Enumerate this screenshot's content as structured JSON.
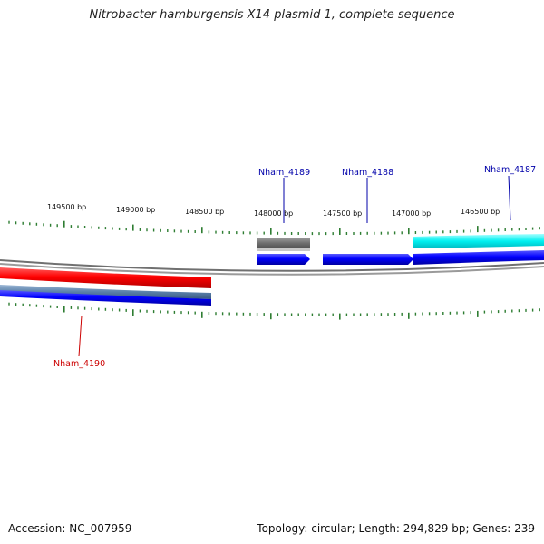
{
  "title": "Nitrobacter hamburgensis X14 plasmid 1, complete sequence",
  "footer": {
    "accession": "Accession: NC_007959",
    "summary": "Topology: circular; Length: 294,829 bp; Genes: 239"
  },
  "ruler": {
    "labels": [
      "149500 bp",
      "149000 bp",
      "148500 bp",
      "148000 bp",
      "147500 bp",
      "147000 bp",
      "146500 bp"
    ]
  },
  "genes": [
    {
      "name": "Nham_4189",
      "color": "#0000aa"
    },
    {
      "name": "Nham_4188",
      "color": "#0000aa"
    },
    {
      "name": "Nham_4187",
      "color": "#0000aa"
    },
    {
      "name": "Nham_4190",
      "color": "#cc0000"
    }
  ],
  "colors": {
    "backbone": "#888888",
    "forward_cds": "#0000ee",
    "forward_product": "#00e5e5",
    "reverse_cds": "#ee0000",
    "reverse_product": "#5a7fa8",
    "gray_feature": "#707070",
    "tick": "#2e7d32"
  }
}
